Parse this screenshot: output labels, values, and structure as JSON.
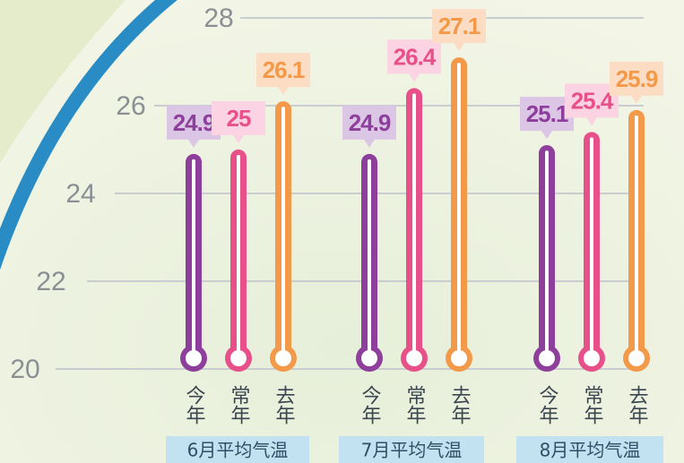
{
  "chart_data": {
    "type": "thermometer-bar",
    "categories": [
      "6月平均气温",
      "7月平均气温",
      "8月平均气温"
    ],
    "series": [
      {
        "name": "今年",
        "color": "#8e3f9b",
        "label_bg": "#dcc6e6",
        "values": [
          24.9,
          24.9,
          25.1
        ]
      },
      {
        "name": "常年",
        "color": "#e8508a",
        "label_bg": "#fbd3e2",
        "values": [
          25,
          26.4,
          25.4
        ]
      },
      {
        "name": "去年",
        "color": "#f3994a",
        "label_bg": "#fddcc4",
        "values": [
          26.1,
          27.1,
          25.9
        ]
      }
    ],
    "ylim": [
      20,
      28
    ],
    "yticks": [
      20,
      22,
      24,
      26,
      28
    ],
    "grid": true
  }
}
